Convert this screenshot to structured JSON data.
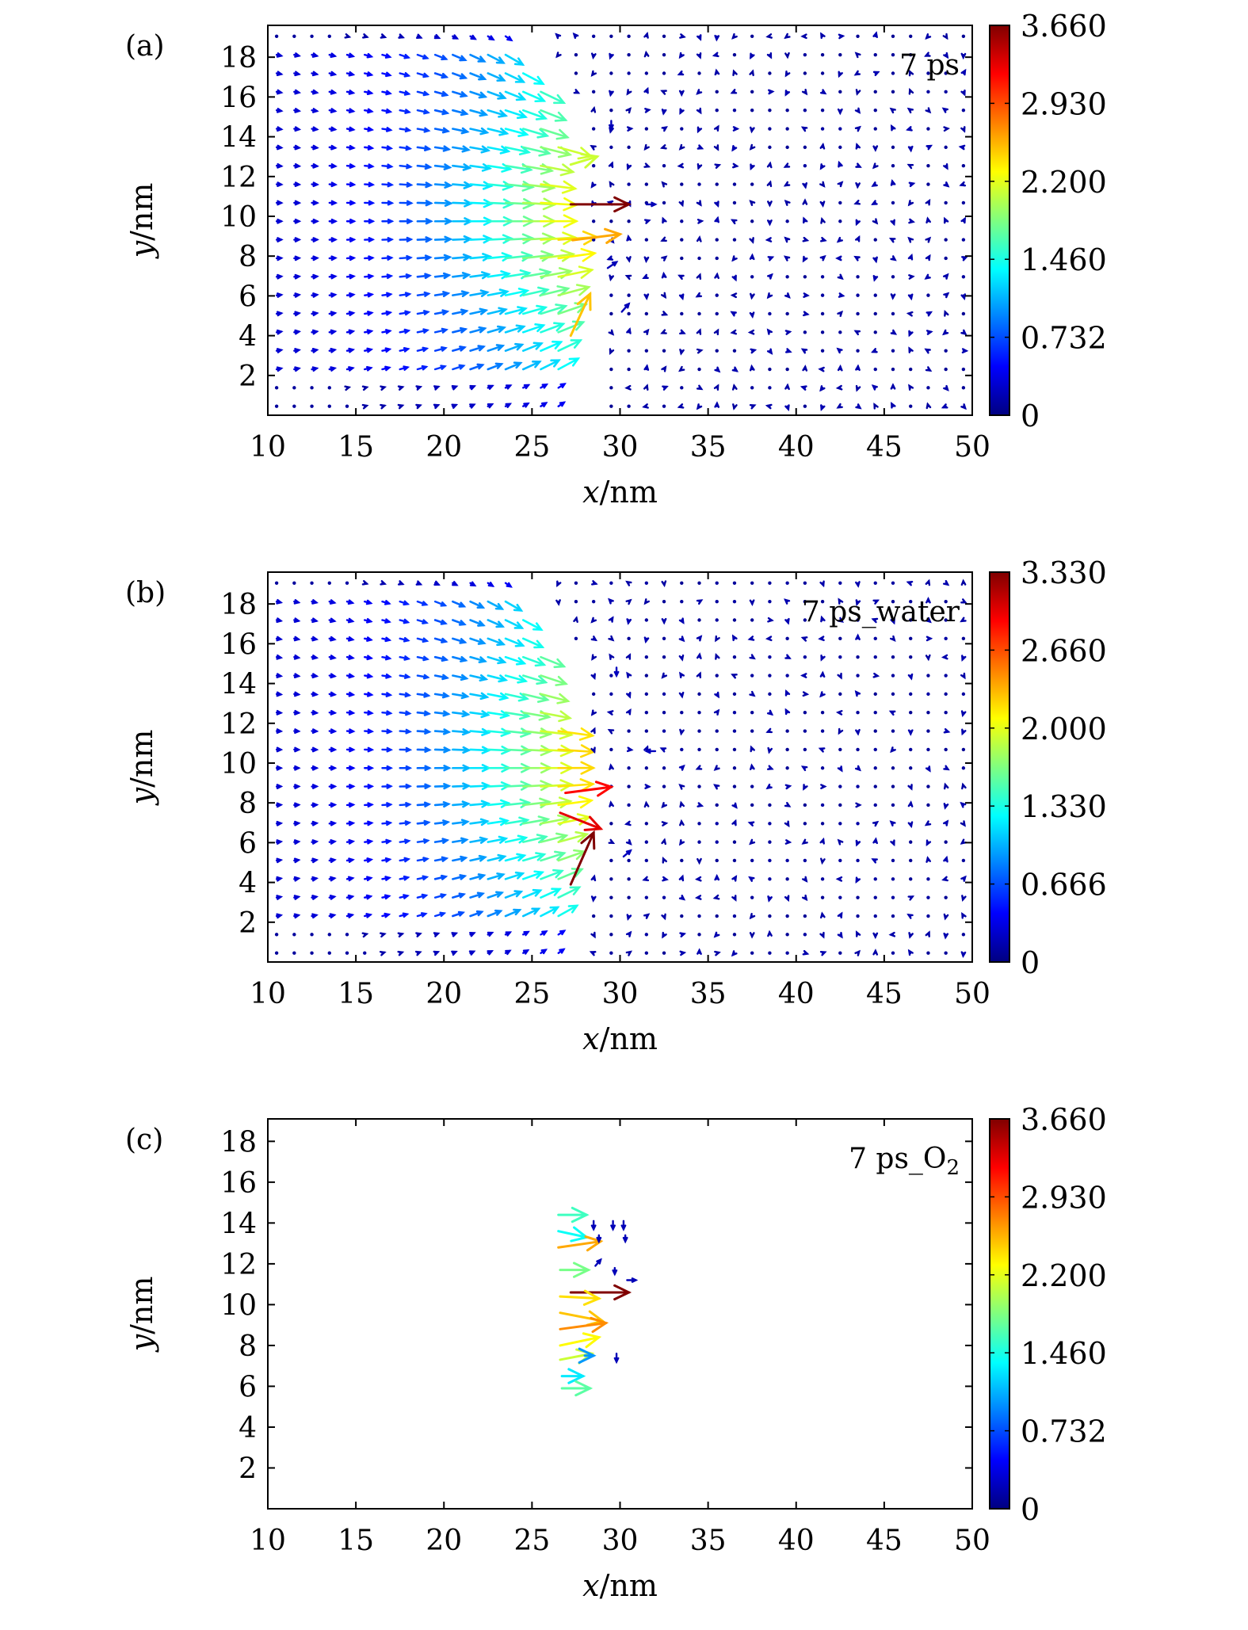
{
  "chart_data": [
    {
      "type": "quiver",
      "panel_label": "(a)",
      "annotation": "7 ps",
      "annotation_sub": "",
      "xlabel_var": "x",
      "xlabel_unit": "/nm",
      "ylabel_var": "y",
      "ylabel_unit": "/nm",
      "xlim": [
        10,
        50
      ],
      "ylim": [
        0,
        19.6
      ],
      "xticks": [
        "10",
        "15",
        "20",
        "25",
        "30",
        "35",
        "40",
        "45",
        "50"
      ],
      "yticks": [
        "2",
        "4",
        "6",
        "8",
        "10",
        "12",
        "14",
        "16",
        "18"
      ],
      "colorbar": {
        "min": 0,
        "max": 3.66,
        "ticks": [
          "3.660",
          "2.930",
          "2.200",
          "1.460",
          "0.732",
          "0"
        ]
      },
      "field": "full",
      "front": [
        [
          4.0,
          27.2
        ],
        [
          6.0,
          27.3
        ],
        [
          8.0,
          27.0
        ],
        [
          10.0,
          26.6
        ],
        [
          12.0,
          26.5
        ],
        [
          14.0,
          26.8
        ],
        [
          16.0,
          26.0
        ],
        [
          17.5,
          25.0
        ],
        [
          19.0,
          24.0
        ]
      ],
      "specials": [
        {
          "x": 27.2,
          "y": 10.6,
          "dx": 3.3,
          "dy": 0.0,
          "mag": 3.66
        },
        {
          "x": 27.3,
          "y": 8.8,
          "dx": 2.7,
          "dy": 0.3,
          "mag": 2.6
        },
        {
          "x": 27.2,
          "y": 4.0,
          "dx": 1.1,
          "dy": 2.1,
          "mag": 2.5
        },
        {
          "x": 27.2,
          "y": 12.6,
          "dx": 1.5,
          "dy": 0.4,
          "mag": 2.1
        },
        {
          "x": 29.3,
          "y": 7.4,
          "dx": 0.5,
          "dy": 0.3,
          "mag": 0.2
        },
        {
          "x": 30.1,
          "y": 5.2,
          "dx": 0.4,
          "dy": 0.4,
          "mag": 0.2
        },
        {
          "x": 31.5,
          "y": 10.6,
          "dx": 0.5,
          "dy": 0.0,
          "mag": 0.2
        },
        {
          "x": 29.5,
          "y": 14.8,
          "dx": 0.0,
          "dy": -0.4,
          "mag": 0.2
        }
      ]
    },
    {
      "type": "quiver",
      "panel_label": "(b)",
      "annotation": "7 ps_water",
      "annotation_sub": "",
      "xlabel_var": "x",
      "xlabel_unit": "/nm",
      "ylabel_var": "y",
      "ylabel_unit": "/nm",
      "xlim": [
        10,
        50
      ],
      "ylim": [
        0,
        19.6
      ],
      "xticks": [
        "10",
        "15",
        "20",
        "25",
        "30",
        "35",
        "40",
        "45",
        "50"
      ],
      "yticks": [
        "2",
        "4",
        "6",
        "8",
        "10",
        "12",
        "14",
        "16",
        "18"
      ],
      "colorbar": {
        "min": 0,
        "max": 3.33,
        "ticks": [
          "3.330",
          "2.660",
          "2.000",
          "1.330",
          "0.666",
          "0"
        ]
      },
      "field": "full",
      "front": [
        [
          4.0,
          26.8
        ],
        [
          6.0,
          27.0
        ],
        [
          8.0,
          27.0
        ],
        [
          10.0,
          27.0
        ],
        [
          12.0,
          26.7
        ],
        [
          14.0,
          26.4
        ],
        [
          16.0,
          25.8
        ],
        [
          17.5,
          25.0
        ],
        [
          19.0,
          24.0
        ]
      ],
      "specials": [
        {
          "x": 27.2,
          "y": 3.9,
          "dx": 1.3,
          "dy": 2.6,
          "mag": 3.33
        },
        {
          "x": 26.6,
          "y": 7.5,
          "dx": 2.3,
          "dy": -0.8,
          "mag": 3.0
        },
        {
          "x": 26.9,
          "y": 8.5,
          "dx": 2.6,
          "dy": 0.3,
          "mag": 2.9
        },
        {
          "x": 30.2,
          "y": 5.3,
          "dx": 0.4,
          "dy": 0.3,
          "mag": 0.2
        },
        {
          "x": 32.0,
          "y": 10.6,
          "dx": -0.5,
          "dy": 0.0,
          "mag": 0.2
        },
        {
          "x": 29.8,
          "y": 14.8,
          "dx": 0.0,
          "dy": -0.4,
          "mag": 0.2
        }
      ]
    },
    {
      "type": "quiver",
      "panel_label": "(c)",
      "annotation": "7 ps_O",
      "annotation_sub": "2",
      "xlabel_var": "x",
      "xlabel_unit": "/nm",
      "ylabel_var": "y",
      "ylabel_unit": "/nm",
      "xlim": [
        10,
        50
      ],
      "ylim": [
        0,
        19.1
      ],
      "xticks": [
        "10",
        "15",
        "20",
        "25",
        "30",
        "35",
        "40",
        "45",
        "50"
      ],
      "yticks": [
        "2",
        "4",
        "6",
        "8",
        "10",
        "12",
        "14",
        "16",
        "18"
      ],
      "colorbar": {
        "min": 0,
        "max": 3.66,
        "ticks": [
          "3.660",
          "2.930",
          "2.200",
          "1.460",
          "0.732",
          "0"
        ]
      },
      "field": "sparse",
      "specials": [
        {
          "x": 26.5,
          "y": 14.4,
          "dx": 1.6,
          "dy": 0.0,
          "mag": 1.6
        },
        {
          "x": 26.5,
          "y": 13.6,
          "dx": 1.6,
          "dy": -0.3,
          "mag": 1.4
        },
        {
          "x": 26.5,
          "y": 12.8,
          "dx": 2.4,
          "dy": 0.3,
          "mag": 2.6
        },
        {
          "x": 26.6,
          "y": 11.7,
          "dx": 1.6,
          "dy": 0.0,
          "mag": 1.8
        },
        {
          "x": 27.2,
          "y": 10.6,
          "dx": 3.3,
          "dy": 0.0,
          "mag": 3.66
        },
        {
          "x": 26.6,
          "y": 10.4,
          "dx": 2.2,
          "dy": -0.1,
          "mag": 2.4
        },
        {
          "x": 26.6,
          "y": 9.6,
          "dx": 2.4,
          "dy": -0.4,
          "mag": 2.5
        },
        {
          "x": 26.6,
          "y": 8.8,
          "dx": 2.6,
          "dy": 0.3,
          "mag": 2.7
        },
        {
          "x": 26.6,
          "y": 8.0,
          "dx": 2.2,
          "dy": 0.4,
          "mag": 2.3
        },
        {
          "x": 26.6,
          "y": 7.3,
          "dx": 1.8,
          "dy": 0.3,
          "mag": 2.1
        },
        {
          "x": 26.7,
          "y": 6.5,
          "dx": 1.2,
          "dy": 0.0,
          "mag": 1.3
        },
        {
          "x": 26.7,
          "y": 5.9,
          "dx": 1.6,
          "dy": 0.0,
          "mag": 1.7
        },
        {
          "x": 28.0,
          "y": 7.5,
          "dx": 0.5,
          "dy": 0.0,
          "mag": 1.0
        },
        {
          "x": 28.5,
          "y": 14.1,
          "dx": 0.0,
          "dy": -0.4,
          "mag": 0.2
        },
        {
          "x": 29.6,
          "y": 14.1,
          "dx": 0.0,
          "dy": -0.4,
          "mag": 0.2
        },
        {
          "x": 30.2,
          "y": 14.1,
          "dx": 0.0,
          "dy": -0.4,
          "mag": 0.2
        },
        {
          "x": 28.8,
          "y": 13.4,
          "dx": 0.0,
          "dy": -0.3,
          "mag": 0.2
        },
        {
          "x": 30.3,
          "y": 13.4,
          "dx": 0.0,
          "dy": -0.3,
          "mag": 0.2
        },
        {
          "x": 28.6,
          "y": 11.9,
          "dx": 0.3,
          "dy": 0.3,
          "mag": 0.2
        },
        {
          "x": 29.7,
          "y": 11.8,
          "dx": 0.0,
          "dy": -0.3,
          "mag": 0.2
        },
        {
          "x": 30.4,
          "y": 11.2,
          "dx": 0.5,
          "dy": 0.0,
          "mag": 0.2
        },
        {
          "x": 29.8,
          "y": 7.6,
          "dx": 0.0,
          "dy": -0.4,
          "mag": 0.2
        }
      ]
    }
  ]
}
